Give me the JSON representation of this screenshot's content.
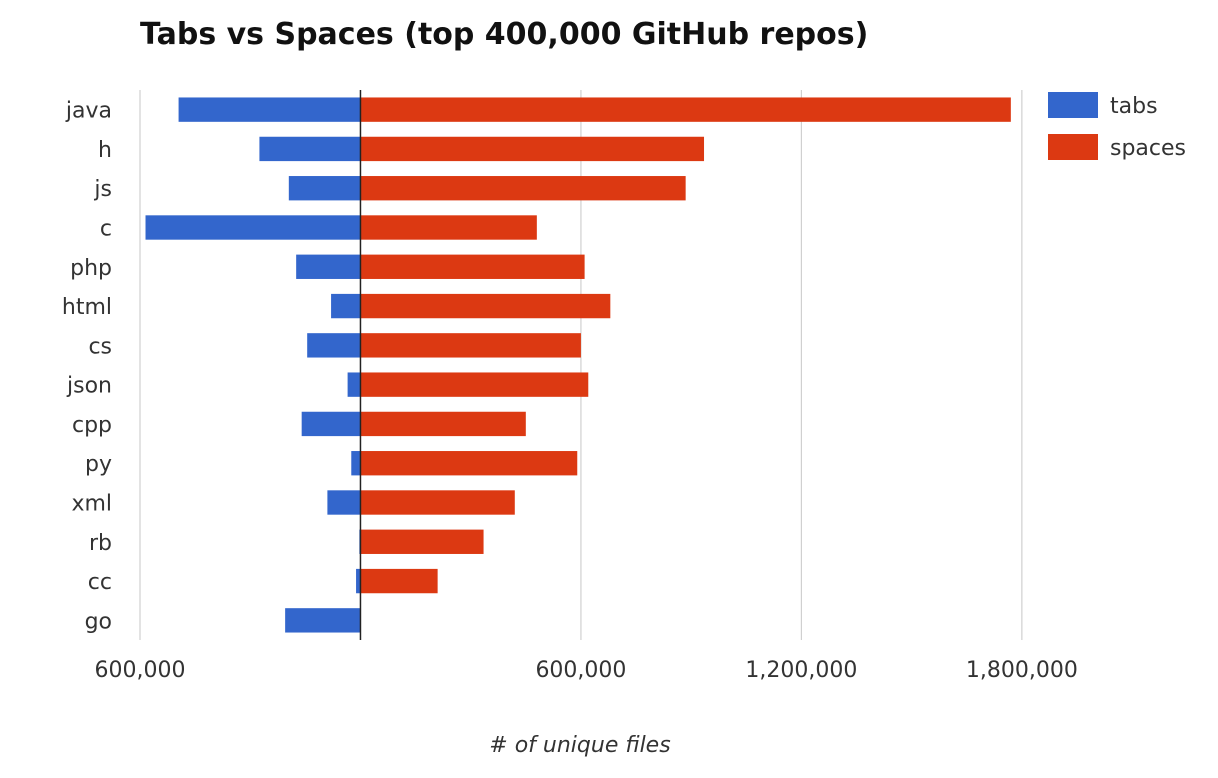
{
  "chart_data": {
    "type": "bar",
    "orientation": "horizontal-diverging",
    "title": "Tabs vs Spaces (top 400,000 GitHub repos)",
    "xlabel": "# of unique files",
    "ylabel": "",
    "categories": [
      "java",
      "h",
      "js",
      "c",
      "php",
      "html",
      "cs",
      "json",
      "cpp",
      "py",
      "xml",
      "rb",
      "cc",
      "go"
    ],
    "series": [
      {
        "name": "tabs",
        "color": "#3366cc",
        "direction": "left",
        "values": [
          495000,
          275000,
          195000,
          585000,
          175000,
          80000,
          145000,
          35000,
          160000,
          25000,
          90000,
          3000,
          12000,
          205000
        ]
      },
      {
        "name": "spaces",
        "color": "#dc3912",
        "direction": "right",
        "values": [
          1770000,
          935000,
          885000,
          480000,
          610000,
          680000,
          600000,
          620000,
          450000,
          590000,
          420000,
          335000,
          210000,
          0
        ]
      }
    ],
    "xlim": [
      -600000,
      1980000
    ],
    "xticks": [
      -600000,
      600000,
      1200000,
      1800000
    ],
    "xtick_labels": [
      "600,000",
      "600,000",
      "1,200,000",
      "1,800,000"
    ],
    "grid": true,
    "legend": "top-right"
  }
}
